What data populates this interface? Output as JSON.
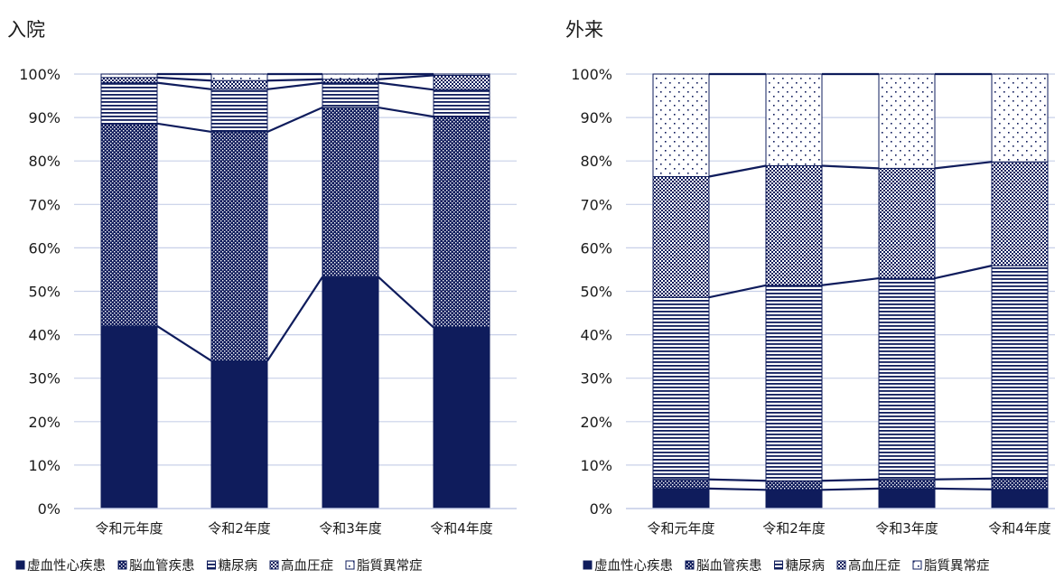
{
  "colors": {
    "series": "#0f1c5c",
    "grid": "#c8d0e8",
    "text": "#1a1a1a",
    "background": "#ffffff"
  },
  "chart_data": [
    {
      "type": "bar",
      "stacked": true,
      "percent": true,
      "series_lines": true,
      "title": "入院",
      "categories": [
        "令和元年度",
        "令和2年度",
        "令和3年度",
        "令和4年度"
      ],
      "y_ticks": [
        "0%",
        "10%",
        "20%",
        "30%",
        "40%",
        "50%",
        "60%",
        "70%",
        "80%",
        "90%",
        "100%"
      ],
      "ylim": [
        0,
        100
      ],
      "grid": true,
      "legend_position": "bottom",
      "series": [
        {
          "name": "虚血性心疾患",
          "pattern": "solid",
          "values": [
            42.0,
            34.0,
            53.3,
            41.7
          ]
        },
        {
          "name": "脳血管疾患",
          "pattern": "dots-fine",
          "values": [
            46.6,
            52.7,
            39.0,
            48.5
          ]
        },
        {
          "name": "糖尿病",
          "pattern": "horizontal-lines",
          "values": [
            9.4,
            9.8,
            5.7,
            6.2
          ]
        },
        {
          "name": "高血圧症",
          "pattern": "checker",
          "values": [
            1.2,
            2.0,
            0.8,
            3.3
          ]
        },
        {
          "name": "脂質異常症",
          "pattern": "sparse-dots",
          "values": [
            0.8,
            1.5,
            1.2,
            0.3
          ]
        }
      ]
    },
    {
      "type": "bar",
      "stacked": true,
      "percent": true,
      "series_lines": true,
      "title": "外来",
      "categories": [
        "令和元年度",
        "令和2年度",
        "令和3年度",
        "令和4年度"
      ],
      "y_ticks": [
        "0%",
        "10%",
        "20%",
        "30%",
        "40%",
        "50%",
        "60%",
        "70%",
        "80%",
        "90%",
        "100%"
      ],
      "ylim": [
        0,
        100
      ],
      "grid": true,
      "legend_position": "bottom",
      "series": [
        {
          "name": "虚血性心疾患",
          "pattern": "solid",
          "values": [
            4.6,
            4.3,
            4.6,
            4.4
          ]
        },
        {
          "name": "脳血管疾患",
          "pattern": "dots-fine",
          "values": [
            2.1,
            2.1,
            2.1,
            2.5
          ]
        },
        {
          "name": "糖尿病",
          "pattern": "horizontal-lines",
          "values": [
            41.9,
            45.0,
            46.3,
            49.0
          ]
        },
        {
          "name": "高血圧症",
          "pattern": "checker",
          "values": [
            27.8,
            27.5,
            25.3,
            23.9
          ]
        },
        {
          "name": "脂質異常症",
          "pattern": "sparse-dots",
          "values": [
            23.6,
            21.1,
            21.7,
            20.2
          ]
        }
      ]
    }
  ]
}
